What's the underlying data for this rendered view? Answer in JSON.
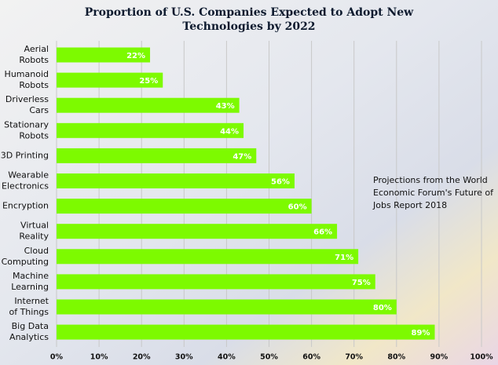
{
  "chart_data": {
    "type": "bar",
    "orientation": "horizontal",
    "title": [
      "Proportion of U.S. Companies Expected to Adopt New",
      "Technologies by 2022"
    ],
    "annotation": [
      "Projections from the World",
      "Economic Forum's Future of",
      "Jobs Report 2018"
    ],
    "categories": [
      [
        "Aerial",
        "Robots"
      ],
      [
        "Humanoid",
        "Robots"
      ],
      [
        "Driverless",
        "Cars"
      ],
      [
        "Stationary",
        "Robots"
      ],
      [
        "3D Printing"
      ],
      [
        "Wearable",
        "Electronics"
      ],
      [
        "Encryption"
      ],
      [
        "Virtual",
        "Reality"
      ],
      [
        "Cloud",
        "Computing"
      ],
      [
        "Machine",
        "Learning"
      ],
      [
        "Internet",
        "of Things"
      ],
      [
        "Big Data",
        "Analytics"
      ]
    ],
    "values": [
      22,
      25,
      43,
      44,
      47,
      56,
      60,
      66,
      71,
      75,
      80,
      89
    ],
    "value_labels": [
      "22%",
      "25%",
      "43%",
      "44%",
      "47%",
      "56%",
      "60%",
      "66%",
      "71%",
      "75%",
      "80%",
      "89%"
    ],
    "color": "#7dfa00",
    "xlim": [
      0,
      100
    ],
    "xticks": [
      {
        "value": 0,
        "label": "0%"
      },
      {
        "value": 10,
        "label": "10%"
      },
      {
        "value": 20,
        "label": "20%"
      },
      {
        "value": 30,
        "label": "30%"
      },
      {
        "value": 40,
        "label": "40%"
      },
      {
        "value": 50,
        "label": "50%"
      },
      {
        "value": 60,
        "label": "60%"
      },
      {
        "value": 70,
        "label": "70%"
      },
      {
        "value": 80,
        "label": "80%"
      },
      {
        "value": 90,
        "label": "90%"
      },
      {
        "value": 100,
        "label": "100%"
      }
    ],
    "grid": true
  }
}
